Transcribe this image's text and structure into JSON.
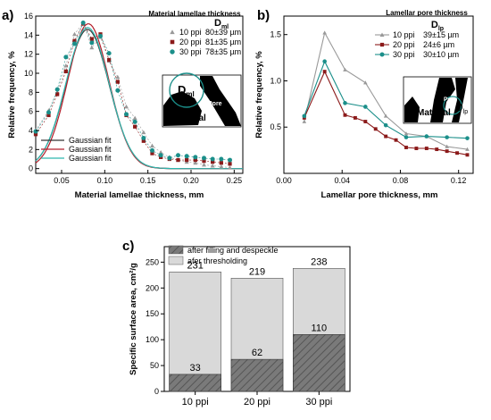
{
  "panels": {
    "a": "a)",
    "b": "b)",
    "c": "c)"
  },
  "chart_data": [
    {
      "id": "a",
      "type": "scatter",
      "xlabel": "Material lamellae thickness, mm",
      "ylabel": "Relative frequency, %",
      "xlim": [
        0.02,
        0.26
      ],
      "ylim": [
        -0.5,
        16
      ],
      "xticks": [
        "0.05",
        "0.10",
        "0.15",
        "0.20",
        "0.25"
      ],
      "yticks": [
        "0",
        "2",
        "4",
        "6",
        "8",
        "10",
        "12",
        "14",
        "16"
      ],
      "legend_title": "Material lamellae thickness",
      "legend_symbol": "D",
      "legend_symbol_sub": "ml",
      "series": [
        {
          "name": "10 ppi",
          "stat": "80±39 µm",
          "color": "#999999",
          "marker": "triangle",
          "x": [
            0.02,
            0.035,
            0.045,
            0.055,
            0.065,
            0.075,
            0.085,
            0.095,
            0.105,
            0.115,
            0.125,
            0.135,
            0.145,
            0.155,
            0.165,
            0.175,
            0.185,
            0.195,
            0.205,
            0.215,
            0.225,
            0.235,
            0.245
          ],
          "y": [
            4.0,
            6.1,
            8.0,
            10.8,
            14.1,
            15.3,
            12.7,
            13.8,
            11.3,
            9.6,
            6.5,
            5.3,
            3.8,
            2.4,
            1.7,
            1.2,
            0.9,
            0.7,
            0.6,
            0.4,
            0.3,
            0.2,
            0.1
          ],
          "fit": {
            "a": 14.6,
            "mu": 0.08,
            "sigma": 0.025
          }
        },
        {
          "name": "20 ppi",
          "stat": "81±35 µm",
          "color": "#8b1a1a",
          "marker": "square",
          "x": [
            0.02,
            0.035,
            0.045,
            0.055,
            0.065,
            0.075,
            0.085,
            0.095,
            0.105,
            0.115,
            0.125,
            0.135,
            0.145,
            0.155,
            0.165,
            0.175,
            0.185,
            0.195,
            0.205,
            0.215,
            0.225,
            0.235,
            0.245
          ],
          "y": [
            3.6,
            5.6,
            7.8,
            10.2,
            13.4,
            15.2,
            13.6,
            14.1,
            11.4,
            9.1,
            5.6,
            4.4,
            2.9,
            1.6,
            1.2,
            1.0,
            0.9,
            0.9,
            0.9,
            0.8,
            0.7,
            0.6,
            0.5
          ],
          "fit": {
            "a": 15.2,
            "mu": 0.081,
            "sigma": 0.024
          }
        },
        {
          "name": "30 ppi",
          "stat": "78±35 µm",
          "color": "#1b8f8a",
          "marker": "circle",
          "x": [
            0.02,
            0.035,
            0.045,
            0.055,
            0.065,
            0.075,
            0.085,
            0.095,
            0.105,
            0.115,
            0.125,
            0.135,
            0.145,
            0.155,
            0.165,
            0.175,
            0.185,
            0.195,
            0.205,
            0.215,
            0.225,
            0.235,
            0.245
          ],
          "y": [
            3.9,
            5.9,
            8.3,
            11.7,
            13.1,
            15.3,
            13.2,
            13.9,
            12.1,
            8.2,
            5.7,
            4.9,
            3.2,
            1.9,
            1.4,
            1.1,
            1.4,
            1.3,
            1.2,
            1.1,
            1.0,
            1.0,
            0.9
          ],
          "fit": {
            "a": 14.8,
            "mu": 0.08,
            "sigma": 0.025
          }
        }
      ],
      "fit_legend": [
        "Gaussian fit",
        "Gaussian fit",
        "Gaussian fit"
      ],
      "inset_labels": [
        "Material",
        "Pore"
      ]
    },
    {
      "id": "b",
      "type": "line",
      "xlabel": "Lamellar pore thickness, mm",
      "ylabel": "Relative frequency, %",
      "xlim": [
        0.0,
        0.13
      ],
      "ylim": [
        0.0,
        1.7
      ],
      "xticks": [
        "0.00",
        "0.04",
        "0.08",
        "0.12"
      ],
      "yticks": [
        "0.5",
        "1.0",
        "1.5"
      ],
      "legend_title": "Lamellar pore thickness",
      "legend_symbol": "D",
      "legend_symbol_sub": "lp",
      "series": [
        {
          "name": "10 ppi",
          "stat": "39±15 µm",
          "color": "#999999",
          "marker": "triangle",
          "x": [
            0.014,
            0.028,
            0.042,
            0.056,
            0.07,
            0.084,
            0.098,
            0.112,
            0.126
          ],
          "y": [
            0.56,
            1.52,
            1.12,
            0.98,
            0.62,
            0.43,
            0.4,
            0.29,
            0.26
          ]
        },
        {
          "name": "20 ppi",
          "stat": "24±6 µm",
          "color": "#8b1a1a",
          "marker": "square",
          "x": [
            0.014,
            0.028,
            0.042,
            0.049,
            0.056,
            0.063,
            0.07,
            0.077,
            0.084,
            0.091,
            0.098,
            0.105,
            0.112,
            0.119,
            0.126
          ],
          "y": [
            0.6,
            1.1,
            0.63,
            0.6,
            0.56,
            0.48,
            0.4,
            0.36,
            0.28,
            0.27,
            0.27,
            0.26,
            0.24,
            0.22,
            0.2
          ]
        },
        {
          "name": "30 ppi",
          "stat": "30±10 µm",
          "color": "#1b8f8a",
          "marker": "circle",
          "x": [
            0.014,
            0.028,
            0.042,
            0.056,
            0.07,
            0.084,
            0.098,
            0.112,
            0.126
          ],
          "y": [
            0.62,
            1.21,
            0.76,
            0.72,
            0.52,
            0.39,
            0.4,
            0.39,
            0.38
          ]
        }
      ],
      "inset_labels": [
        "Material",
        "Pore"
      ]
    },
    {
      "id": "c",
      "type": "bar",
      "ylabel": "Specific surface area, cm²/g",
      "ylim": [
        0,
        280
      ],
      "yticks": [
        "0",
        "50",
        "100",
        "150",
        "200",
        "250"
      ],
      "categories": [
        "10 ppi",
        "20 ppi",
        "30 ppi"
      ],
      "series": [
        {
          "name": "after filling and despeckle",
          "values": [
            33,
            62,
            110
          ],
          "color": "#777777",
          "pattern": "hatched"
        },
        {
          "name": "afer thresholding",
          "values": [
            231,
            219,
            238
          ],
          "color": "#d9d9d9"
        }
      ]
    }
  ]
}
